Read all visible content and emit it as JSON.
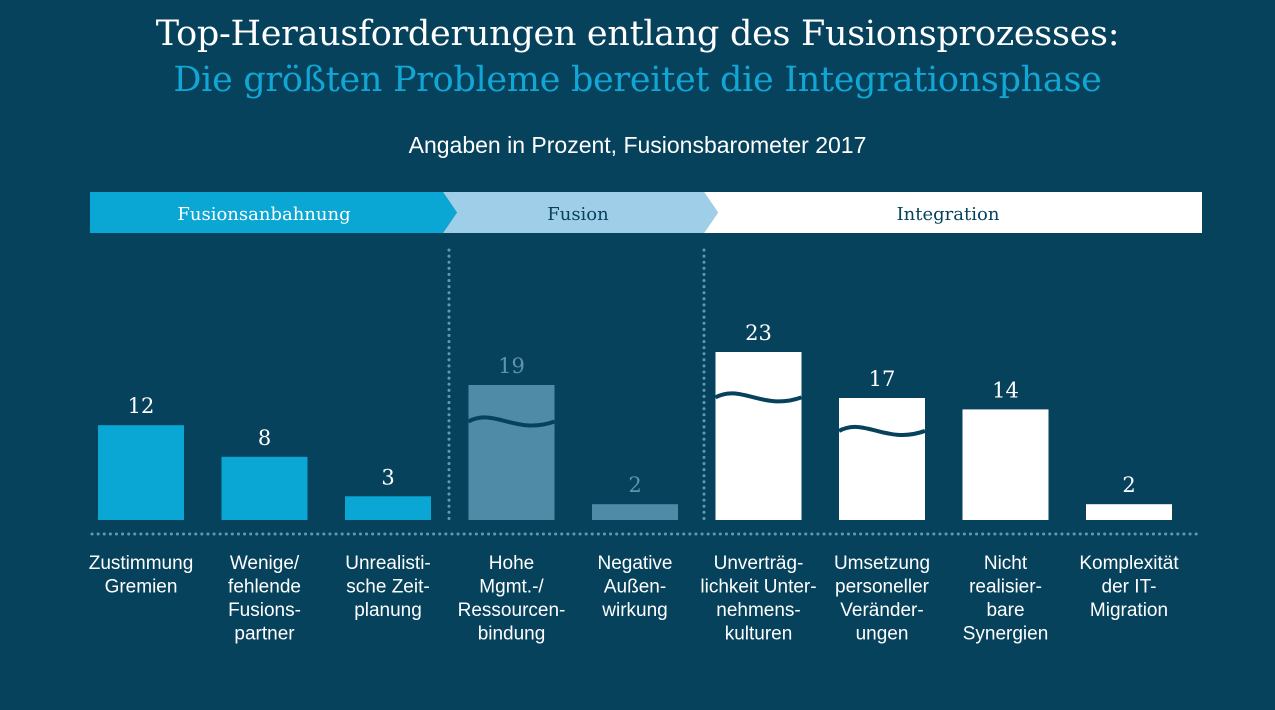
{
  "header": {
    "title": "Top-Herausforderungen entlang des Fusionsprozesses:",
    "subtitle": "Die größten Probleme bereitet die Integrationsphase",
    "note": "Angaben in Prozent, Fusionsbarometer 2017"
  },
  "colors": {
    "background": "#07425d",
    "fusionsanbahnung": "#0aa6d4",
    "fusion": "#4f8aa6",
    "integration": "#ffffff",
    "fusion_arrow": "#9fcfe8"
  },
  "phases": [
    {
      "name": "Fusionsanbahnung",
      "key": "fusionsanbahnung"
    },
    {
      "name": "Fusion",
      "key": "fusion"
    },
    {
      "name": "Integration",
      "key": "integration"
    }
  ],
  "chart_data": {
    "type": "bar",
    "title": "",
    "xlabel": "",
    "ylabel": "",
    "categories": [
      [
        "Zustimmung",
        "Gremien"
      ],
      [
        "Wenige/",
        "fehlende",
        "Fusions-",
        "partner"
      ],
      [
        "Unrealisti-",
        "sche Zeit-",
        "planung"
      ],
      [
        "Hohe",
        "Mgmt.-/",
        "Ressourcen-",
        "bindung"
      ],
      [
        "Negative",
        "Außen-",
        "wirkung"
      ],
      [
        "Unverträg-",
        "lichkeit Unter-",
        "nehmens-",
        "kulturen"
      ],
      [
        "Umsetzung",
        "personeller",
        "Veränder-",
        "ungen"
      ],
      [
        "Nicht",
        "realisier-",
        "bare",
        "Synergien"
      ],
      [
        "Komplexität",
        "der IT-",
        "Migration"
      ]
    ],
    "values": [
      12,
      8,
      3,
      19,
      2,
      23,
      17,
      14,
      2
    ],
    "phase": [
      "fusionsanbahnung",
      "fusionsanbahnung",
      "fusionsanbahnung",
      "fusion",
      "fusion",
      "integration",
      "integration",
      "integration",
      "integration"
    ],
    "axis_break": [
      false,
      false,
      false,
      true,
      false,
      true,
      true,
      false,
      false
    ]
  }
}
